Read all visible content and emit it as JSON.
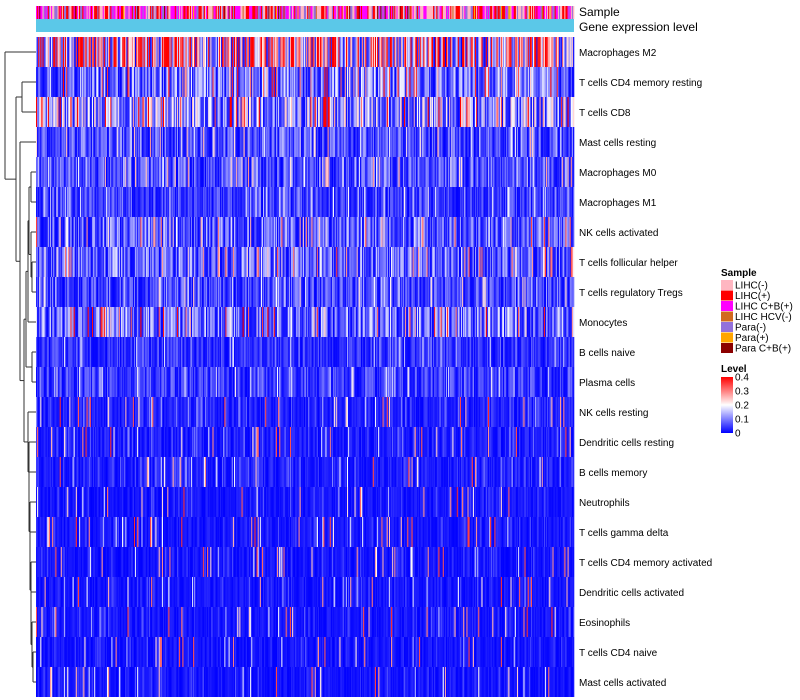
{
  "chart_data": {
    "type": "heatmap",
    "annotation_rows": [
      "Sample",
      "Gene expression level"
    ],
    "rows": [
      "Macrophages M2",
      "T cells CD4 memory resting",
      "T cells CD8",
      "Mast cells resting",
      "Macrophages M0",
      "Macrophages M1",
      "NK cells activated",
      "T cells follicular helper",
      "T cells regulatory  Tregs",
      "Monocytes",
      "B cells naive",
      "Plasma cells",
      "NK cells resting",
      "Dendritic cells resting",
      "B cells memory",
      "Neutrophils",
      "T cells gamma delta",
      "T cells CD4 memory activated",
      "Dendritic cells activated",
      "Eosinophils",
      "T cells CD4 naive",
      "Mast cells activated"
    ],
    "row_mean_level": [
      0.28,
      0.12,
      0.16,
      0.08,
      0.08,
      0.06,
      0.1,
      0.1,
      0.07,
      0.12,
      0.05,
      0.06,
      0.03,
      0.03,
      0.03,
      0.02,
      0.02,
      0.02,
      0.02,
      0.02,
      0.02,
      0.02
    ],
    "n_samples": 500,
    "sample_legend": {
      "title": "Sample",
      "items": [
        {
          "label": "LIHC(-)",
          "color": "#ffb6c1"
        },
        {
          "label": "LIHC(+)",
          "color": "#ff0000"
        },
        {
          "label": "LIHC C+B(+)",
          "color": "#ff00ff"
        },
        {
          "label": "LIHC HCV(-)",
          "color": "#d2691e"
        },
        {
          "label": "Para(-)",
          "color": "#9370db"
        },
        {
          "label": "Para(+)",
          "color": "#ffa500"
        },
        {
          "label": "Para C+B(+)",
          "color": "#8b0000"
        }
      ]
    },
    "level_legend": {
      "title": "Level",
      "ticks": [
        "0.4",
        "0.3",
        "0.2",
        "0.1",
        "0"
      ],
      "range": [
        0,
        0.4
      ],
      "colors": [
        "#0000ff",
        "#ffffff",
        "#ff0000"
      ]
    },
    "gene_expression_color": "#5bc8e8"
  }
}
